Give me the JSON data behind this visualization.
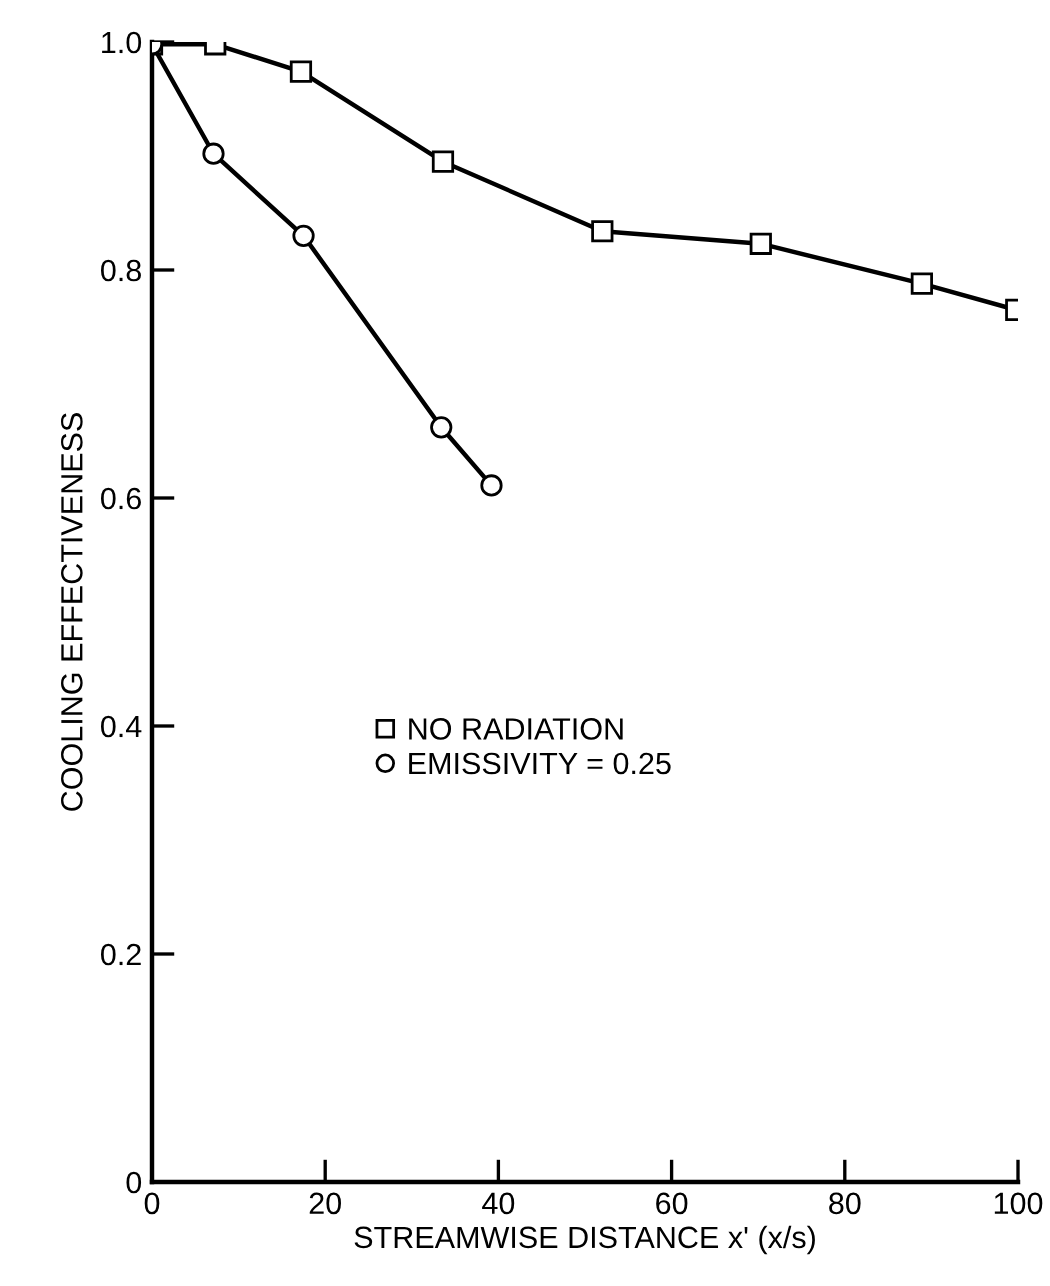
{
  "chart_data": {
    "type": "line",
    "xlabel": "STREAMWISE DISTANCE x' (x/s)",
    "ylabel": "COOLING EFFECTIVENESS",
    "series": [
      {
        "name": "NO RADIATION",
        "color": "#000000",
        "marker": "square",
        "x": [
          0,
          7.3,
          17.2,
          33.6,
          52,
          70.3,
          88.9,
          99.8
        ],
        "values": [
          0.998,
          0.998,
          0.974,
          0.895,
          0.834,
          0.823,
          0.788,
          0.765
        ]
      },
      {
        "name": "EMISSIVITY = 0.25",
        "color": "#000000",
        "marker": "circle",
        "x": [
          0,
          7.1,
          17.5,
          33.4,
          39.2
        ],
        "values": [
          0.998,
          0.902,
          0.83,
          0.662,
          0.611
        ]
      }
    ],
    "xlim": [
      0,
      100
    ],
    "xticks": [
      0,
      20,
      40,
      60,
      80,
      100
    ],
    "ylim": [
      0,
      1.0
    ],
    "yticks": [
      0,
      0.2,
      0.4,
      0.6,
      0.8,
      {
        "value": 1.0,
        "label": "1.0"
      }
    ],
    "grid": false,
    "legend": "center",
    "line_style": "solid"
  }
}
